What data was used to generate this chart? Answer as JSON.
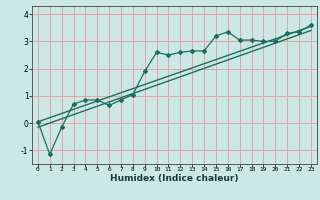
{
  "xlabel": "Humidex (Indice chaleur)",
  "bg_color": "#cce8e4",
  "grid_color": "#e8a0a0",
  "line_color": "#1a7060",
  "xlim": [
    -0.5,
    23.5
  ],
  "ylim": [
    -1.5,
    4.3
  ],
  "x_data": [
    0,
    1,
    2,
    3,
    4,
    5,
    6,
    7,
    8,
    9,
    10,
    11,
    12,
    13,
    14,
    15,
    16,
    17,
    18,
    19,
    20,
    21,
    22,
    23
  ],
  "y_data": [
    0.05,
    -1.15,
    -0.15,
    0.7,
    0.85,
    0.85,
    0.65,
    0.85,
    1.05,
    1.9,
    2.6,
    2.5,
    2.6,
    2.65,
    2.65,
    3.2,
    3.35,
    3.05,
    3.05,
    3.0,
    3.0,
    3.3,
    3.35,
    3.6
  ],
  "trend1_x": [
    0,
    23
  ],
  "trend1_y": [
    0.05,
    3.55
  ],
  "trend2_x": [
    0,
    23
  ],
  "trend2_y": [
    -0.15,
    3.4
  ],
  "xticks": [
    0,
    1,
    2,
    3,
    4,
    5,
    6,
    7,
    8,
    9,
    10,
    11,
    12,
    13,
    14,
    15,
    16,
    17,
    18,
    19,
    20,
    21,
    22,
    23
  ],
  "yticks": [
    -1,
    0,
    1,
    2,
    3,
    4
  ],
  "xlabel_fontsize": 6.5,
  "xlabel_color": "#1a3a3a"
}
